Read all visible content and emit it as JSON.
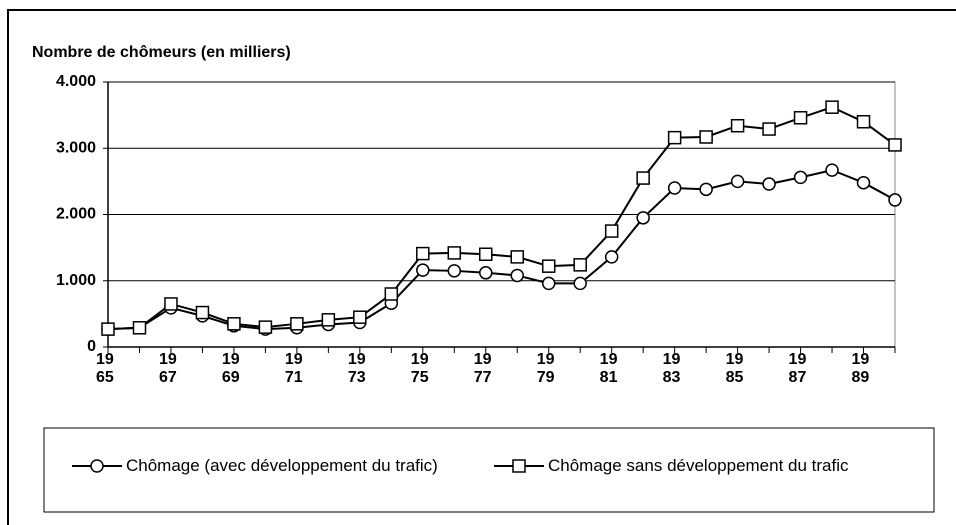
{
  "chart_data": {
    "type": "line",
    "title": "Nombre de chômeurs (en milliers)",
    "categories": [
      "19\n65",
      null,
      "19\n67",
      null,
      "19\n69",
      null,
      "19\n71",
      null,
      "19\n73",
      null,
      "19\n75",
      null,
      "19\n77",
      null,
      "19\n79",
      null,
      "19\n81",
      null,
      "19\n83",
      null,
      "19\n85",
      null,
      "19\n87",
      null,
      "19\n89",
      null
    ],
    "series": [
      {
        "name": "Chômage (avec développement du trafic)",
        "color": "#000000",
        "marker": "circle",
        "values": [
          270,
          290,
          590,
          470,
          320,
          270,
          290,
          340,
          370,
          660,
          1160,
          1150,
          1120,
          1080,
          960,
          960,
          1360,
          1950,
          2400,
          2380,
          2500,
          2460,
          2560,
          2670,
          2480,
          2220
        ]
      },
      {
        "name": "Chômage sans développement du trafic",
        "color": "#000000",
        "marker": "square",
        "values": [
          270,
          290,
          650,
          520,
          350,
          300,
          350,
          410,
          450,
          800,
          1410,
          1420,
          1400,
          1360,
          1220,
          1240,
          1750,
          2550,
          3160,
          3170,
          3340,
          3290,
          3460,
          3620,
          3400,
          3050
        ]
      }
    ],
    "ylim": [
      0,
      4000
    ],
    "yticks": [
      0,
      {
        "value": 1000,
        "label": "1.000"
      },
      {
        "value": 2000,
        "label": "2.000"
      },
      {
        "value": 3000,
        "label": "3.000"
      },
      {
        "value": 4000,
        "label": "4.000"
      }
    ],
    "grid": true,
    "legend": "bottom"
  }
}
